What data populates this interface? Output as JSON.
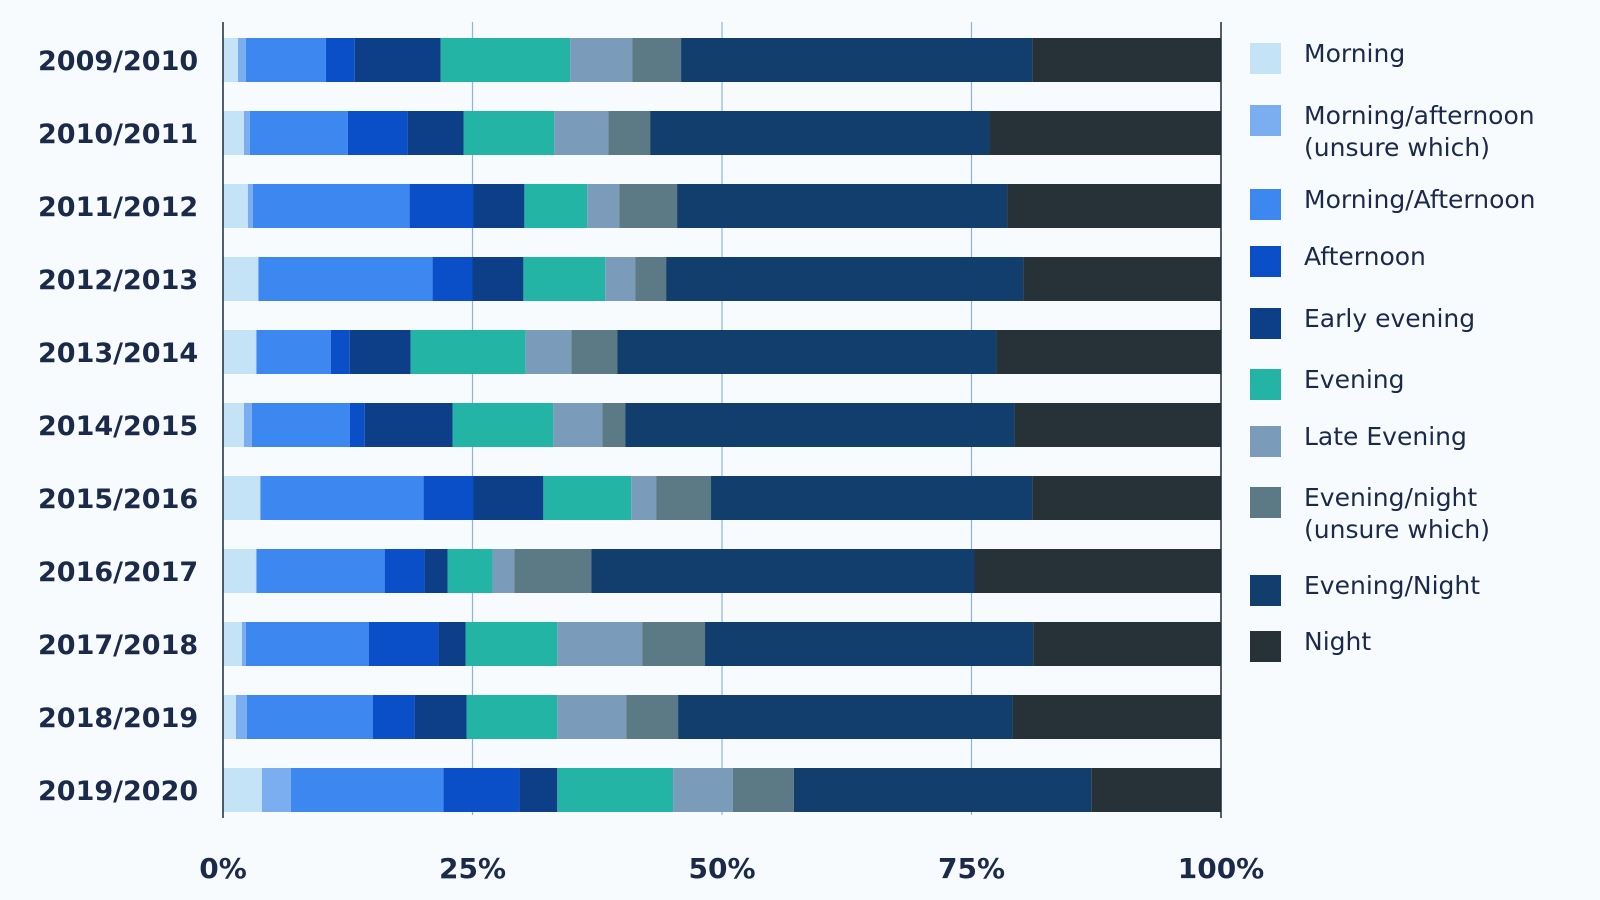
{
  "chart_data": {
    "type": "bar",
    "orientation": "horizontal",
    "stacked": true,
    "title": "",
    "xlabel": "",
    "ylabel": "",
    "xlim": [
      0,
      100
    ],
    "x_ticks": [
      "0%",
      "25%",
      "50%",
      "75%",
      "100%"
    ],
    "x_tick_values": [
      0,
      25,
      50,
      75,
      100
    ],
    "grid": "vertical",
    "legend_placement": "right",
    "categories": [
      "2009/2010",
      "2010/2011",
      "2011/2012",
      "2012/2013",
      "2013/2014",
      "2014/2015",
      "2015/2016",
      "2016/2017",
      "2017/2018",
      "2018/2019",
      "2019/2020"
    ],
    "series": [
      {
        "name": "Morning",
        "color": "#c5e3f7",
        "values": [
          1.5,
          2.1,
          2.5,
          3.5,
          3.3,
          2.1,
          3.7,
          3.3,
          1.9,
          1.3,
          3.9
        ]
      },
      {
        "name": "Morning/afternoon\n(unsure which)",
        "color": "#7baef0",
        "values": [
          0.8,
          0.6,
          0.5,
          0.1,
          0.1,
          0.8,
          0.1,
          0.1,
          0.4,
          1.1,
          2.9
        ]
      },
      {
        "name": "Morning/Afternoon",
        "color": "#3d87f0",
        "values": [
          8.0,
          9.8,
          15.7,
          17.4,
          7.4,
          9.8,
          16.3,
          12.8,
          12.3,
          12.6,
          15.3
        ]
      },
      {
        "name": "Afternoon",
        "color": "#0a4fc7",
        "values": [
          2.9,
          6.0,
          6.4,
          4.0,
          1.9,
          1.5,
          5.0,
          4.0,
          7.0,
          4.2,
          7.6
        ]
      },
      {
        "name": "Early evening",
        "color": "#0c3f88",
        "values": [
          8.6,
          5.6,
          5.1,
          5.1,
          6.1,
          8.8,
          7.0,
          2.3,
          2.7,
          5.2,
          3.8
        ]
      },
      {
        "name": "Evening",
        "color": "#23b4a6",
        "values": [
          13.0,
          9.1,
          6.3,
          8.2,
          11.5,
          10.1,
          8.8,
          4.5,
          9.2,
          9.1,
          11.6
        ]
      },
      {
        "name": "Late Evening",
        "color": "#7a9bba",
        "values": [
          6.2,
          5.4,
          3.2,
          3.0,
          4.6,
          4.9,
          2.5,
          2.2,
          8.5,
          6.9,
          6.0
        ]
      },
      {
        "name": "Evening/night\n(unsure which)",
        "color": "#5c7a85",
        "values": [
          4.9,
          4.2,
          5.8,
          3.1,
          4.6,
          2.3,
          5.5,
          7.7,
          6.3,
          5.2,
          6.1
        ]
      },
      {
        "name": "Evening/Night",
        "color": "#123e6e",
        "values": [
          35.2,
          34.0,
          33.1,
          35.8,
          38.0,
          39.0,
          32.2,
          38.4,
          32.9,
          33.5,
          29.8
        ]
      },
      {
        "name": "Night",
        "color": "#263238",
        "values": [
          18.9,
          23.2,
          21.4,
          19.8,
          22.5,
          20.7,
          18.9,
          24.7,
          18.8,
          20.9,
          13.0
        ]
      }
    ]
  }
}
